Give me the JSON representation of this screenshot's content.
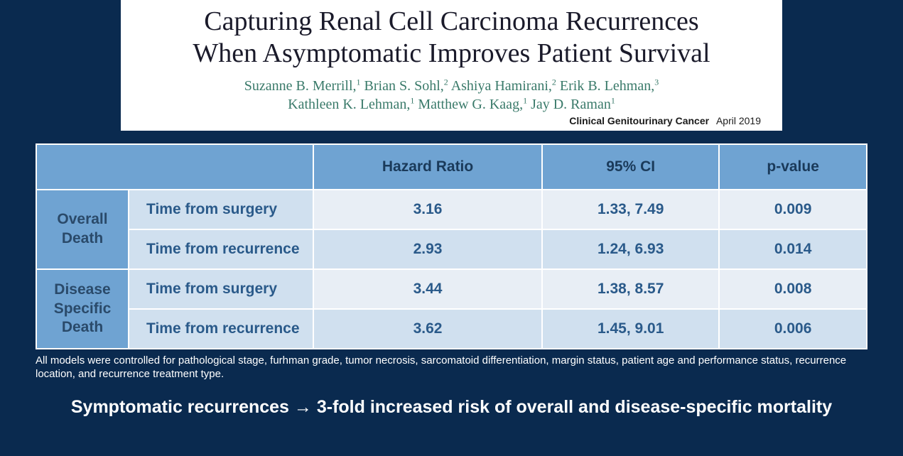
{
  "header": {
    "title_line1": "Capturing Renal Cell Carcinoma Recurrences",
    "title_line2": "When Asymptomatic Improves Patient Survival",
    "authors_line1_html": "Suzanne B. Merrill,<sup>1</sup> Brian S. Sohl,<sup>2</sup> Ashiya Hamirani,<sup>2</sup> Erik B. Lehman,<sup>3</sup>",
    "authors_line2_html": "Kathleen K. Lehman,<sup>1</sup> Matthew G. Kaag,<sup>1</sup> Jay D. Raman<sup>1</sup>",
    "journal": "Clinical Genitourinary Cancer",
    "journal_date": "April 2019"
  },
  "table": {
    "columns": [
      "Hazard Ratio",
      "95% CI",
      "p-value"
    ],
    "groups": [
      {
        "label_html": "Overall<br>Death",
        "rows": [
          {
            "label": "Time from surgery",
            "hr": "3.16",
            "ci": "1.33, 7.49",
            "p": "0.009"
          },
          {
            "label": "Time from recurrence",
            "hr": "2.93",
            "ci": "1.24, 6.93",
            "p": "0.014"
          }
        ]
      },
      {
        "label_html": "Disease<br>Specific<br>Death",
        "rows": [
          {
            "label": "Time from surgery",
            "hr": "3.44",
            "ci": "1.38, 8.57",
            "p": "0.008"
          },
          {
            "label": "Time from recurrence",
            "hr": "3.62",
            "ci": "1.45, 9.01",
            "p": "0.006"
          }
        ]
      }
    ],
    "col_widths": {
      "rowgroup": 130,
      "label": 260
    },
    "colors": {
      "header_bg": "#6fa3d2",
      "row_odd_bg": "#e8eef5",
      "row_even_bg": "#d0e0ef",
      "label_bg": "#d0e0ef",
      "text": "#2a5a8a",
      "border": "#ffffff"
    },
    "font_size": 21
  },
  "footnote": "All models were controlled for pathological stage, furhman grade, tumor necrosis, sarcomatoid differentiation, margin status, patient age and performance status, recurrence location, and recurrence treatment type.",
  "conclusion_html": "Symptomatic recurrences <span class=\"arrow\">&#8594;</span> 3-fold increased risk of overall and disease-specific mortality",
  "slide_bg": "#0a2a4f"
}
